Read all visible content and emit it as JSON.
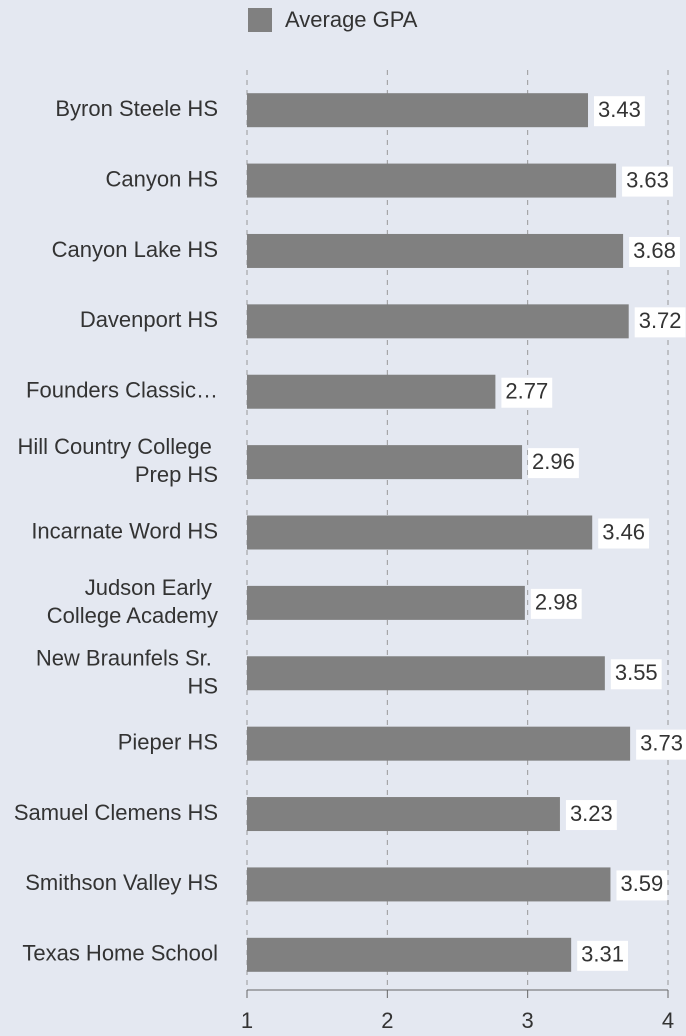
{
  "chart_data": {
    "type": "bar",
    "orientation": "horizontal",
    "legend": "Average GPA",
    "color": "#808080",
    "categories": [
      "Byron Steele HS",
      "Canyon HS",
      "Canyon Lake HS",
      "Davenport HS",
      "Founders Classic…",
      "Hill Country College Prep HS",
      "Incarnate Word HS",
      "Judson Early College Academy",
      "New Braunfels Sr. HS",
      "Pieper HS",
      "Samuel Clemens HS",
      "Smithson Valley HS",
      "Texas Home School"
    ],
    "values": [
      3.43,
      3.63,
      3.68,
      3.72,
      2.77,
      2.96,
      3.46,
      2.98,
      3.55,
      3.73,
      3.23,
      3.59,
      3.31
    ],
    "xlim": [
      1,
      4
    ],
    "xticks": [
      1,
      2,
      3,
      4
    ],
    "grid": true
  }
}
